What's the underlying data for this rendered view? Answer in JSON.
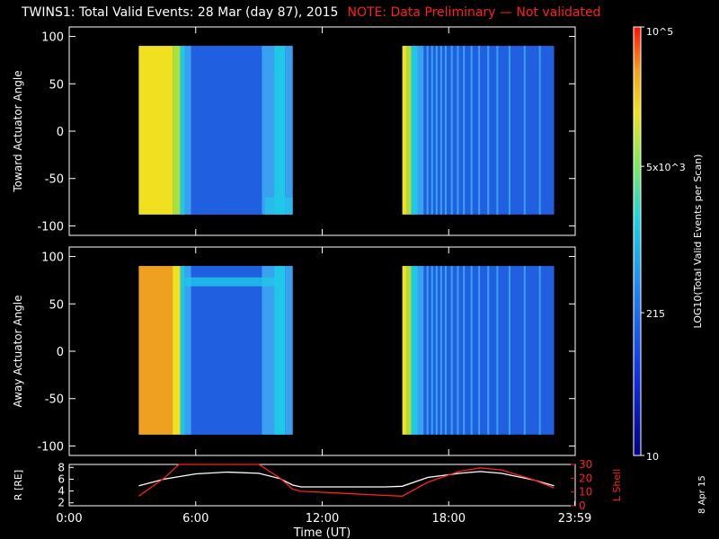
{
  "title": {
    "main": "TWINS1: Total Valid Events: 28 Mar (day  87), 2015",
    "note": "NOTE: Data Preliminary — Not validated",
    "note_color": "#ff2020"
  },
  "date_stamp": "8 Apr 15",
  "chart_data": [
    {
      "type": "heatmap",
      "name": "toward",
      "ylabel": "Toward Actuator Angle",
      "ylim": [
        -110,
        110
      ],
      "yticks": [
        100,
        50,
        0,
        -50,
        -100
      ],
      "xlim": [
        0,
        24
      ],
      "data_blocks": [
        {
          "x": [
            3.3,
            10.6
          ],
          "y": [
            -88,
            90
          ]
        },
        {
          "x": [
            15.8,
            23.0
          ],
          "y": [
            -88,
            90
          ]
        }
      ]
    },
    {
      "type": "heatmap",
      "name": "away",
      "ylabel": "Away Actuator Angle",
      "ylim": [
        -110,
        110
      ],
      "yticks": [
        100,
        50,
        0,
        -50,
        -100
      ],
      "xlim": [
        0,
        24
      ],
      "data_blocks": [
        {
          "x": [
            3.3,
            10.6
          ],
          "y": [
            -88,
            90
          ]
        },
        {
          "x": [
            15.8,
            23.0
          ],
          "y": [
            -88,
            90
          ]
        }
      ]
    },
    {
      "type": "line",
      "name": "orbit",
      "xlabel": "Time (UT)",
      "xticks": [
        "0:00",
        "6:00",
        "12:00",
        "18:00",
        "23:59"
      ],
      "xtick_values": [
        0,
        6,
        12,
        18,
        23.98
      ],
      "left_axis": {
        "label": "R [RE]",
        "ylim": [
          1.5,
          8.5
        ],
        "yticks": [
          2,
          4,
          6,
          8
        ],
        "color": "#ffffff"
      },
      "right_axis": {
        "label": "L Shell",
        "ylim": [
          0,
          30
        ],
        "yticks": [
          0,
          10,
          20,
          30
        ],
        "color": "#ff2020"
      },
      "series": [
        {
          "axis": "left",
          "color": "#ffffff",
          "points": [
            [
              3.3,
              4.9
            ],
            [
              4.5,
              6.0
            ],
            [
              6,
              6.9
            ],
            [
              7.5,
              7.2
            ],
            [
              9,
              7.0
            ],
            [
              10,
              6.1
            ],
            [
              10.6,
              5.0
            ],
            [
              11,
              4.7
            ],
            [
              13,
              4.7
            ],
            [
              15,
              4.7
            ],
            [
              15.8,
              4.8
            ],
            [
              17,
              6.3
            ],
            [
              18.5,
              7.0
            ],
            [
              19.5,
              7.3
            ],
            [
              20.5,
              7.0
            ],
            [
              22,
              5.9
            ],
            [
              23,
              4.9
            ]
          ]
        },
        {
          "axis": "right",
          "color": "#ff2020",
          "points": [
            [
              3.3,
              7
            ],
            [
              4.5,
              20
            ],
            [
              5.2,
              30
            ],
            [
              9,
              30
            ],
            [
              10,
              20
            ],
            [
              10.6,
              12
            ],
            [
              11,
              10.5
            ],
            [
              13,
              9
            ],
            [
              15,
              7.5
            ],
            [
              15.8,
              7
            ],
            [
              17,
              17
            ],
            [
              18.5,
              25
            ],
            [
              19.5,
              27.5
            ],
            [
              20.5,
              26
            ],
            [
              22,
              19
            ],
            [
              23,
              13
            ]
          ]
        }
      ]
    },
    {
      "type": "heatmap",
      "name": "colorbar",
      "label": "LOG10(Total Valid Events per Scan)",
      "tick_labels": [
        "10",
        "215",
        "5x10^3",
        "10^5"
      ],
      "tick_values": [
        10,
        215,
        5000,
        100000
      ]
    }
  ],
  "palette": {
    "yellow": "#f0e020",
    "orange": "#f0a020",
    "green": "#a8e040",
    "cyan": "#20c8e8",
    "light_blue": "#3aa0f0",
    "blue": "#2060e0",
    "deep_blue": "#1040d0",
    "navy": "#000080",
    "red": "#ff0000",
    "frame": "#ffffff"
  }
}
